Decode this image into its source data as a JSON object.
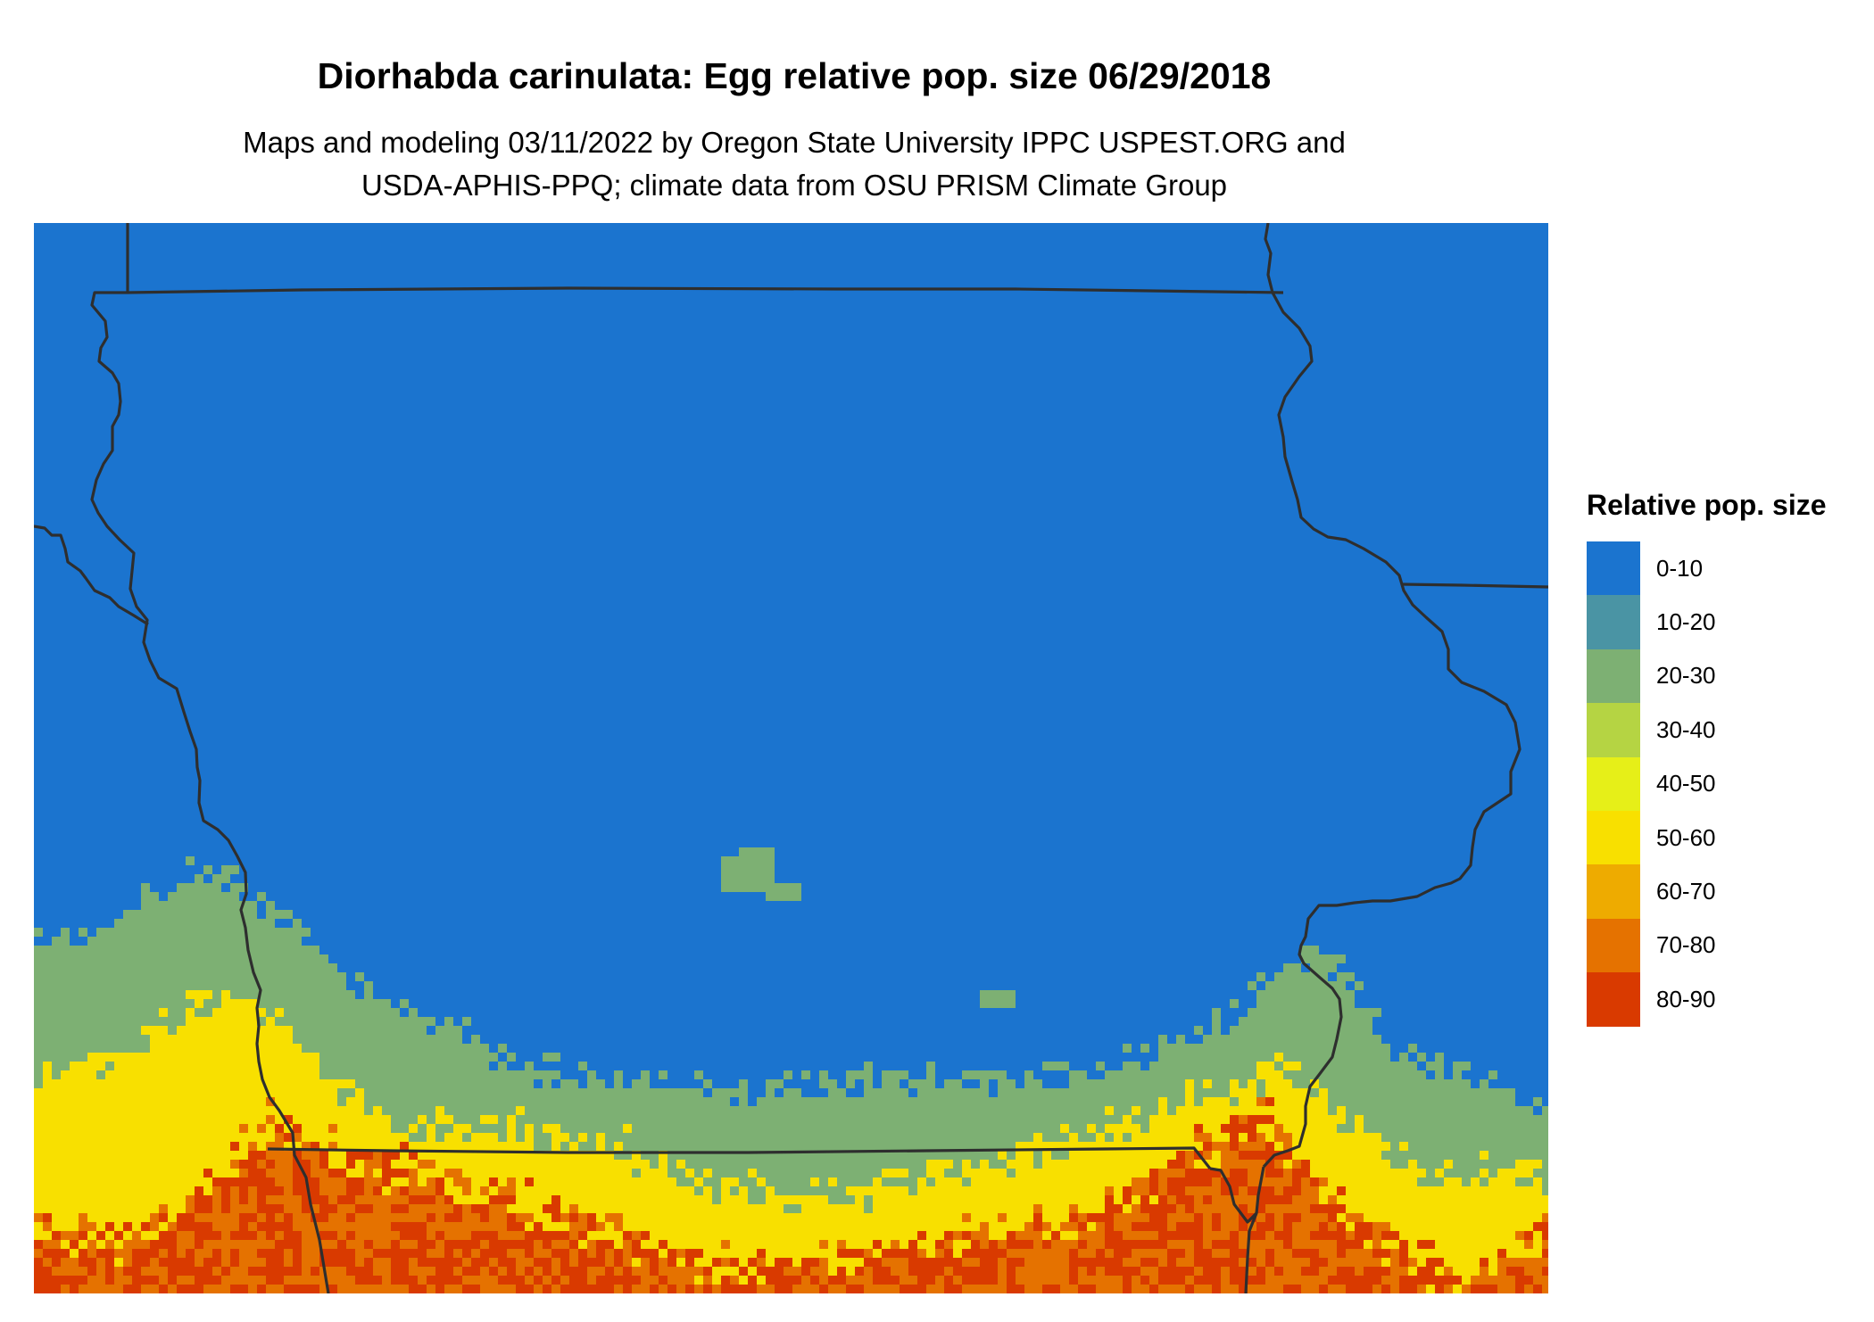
{
  "title": "Diorhabda carinulata: Egg relative pop. size 06/29/2018",
  "subtitle_lines": [
    "Maps and modeling 03/11/2022 by Oregon State University IPPC USPEST.ORG and",
    "USDA-APHIS-PPQ; climate data from OSU PRISM Climate Group"
  ],
  "legend": {
    "title": "Relative pop. size",
    "items": [
      {
        "label": "0-10",
        "color": "#1b74cf"
      },
      {
        "label": "10-20",
        "color": "#4a94a4"
      },
      {
        "label": "20-30",
        "color": "#7db073"
      },
      {
        "label": "30-40",
        "color": "#b5d443"
      },
      {
        "label": "40-50",
        "color": "#e6ef18"
      },
      {
        "label": "50-60",
        "color": "#f8e000"
      },
      {
        "label": "60-70",
        "color": "#eeab00"
      },
      {
        "label": "70-80",
        "color": "#e57200"
      },
      {
        "label": "80-90",
        "color": "#d93a00"
      }
    ]
  },
  "colors": {
    "background": "#1b74cf",
    "border": "#2e2e2e"
  }
}
